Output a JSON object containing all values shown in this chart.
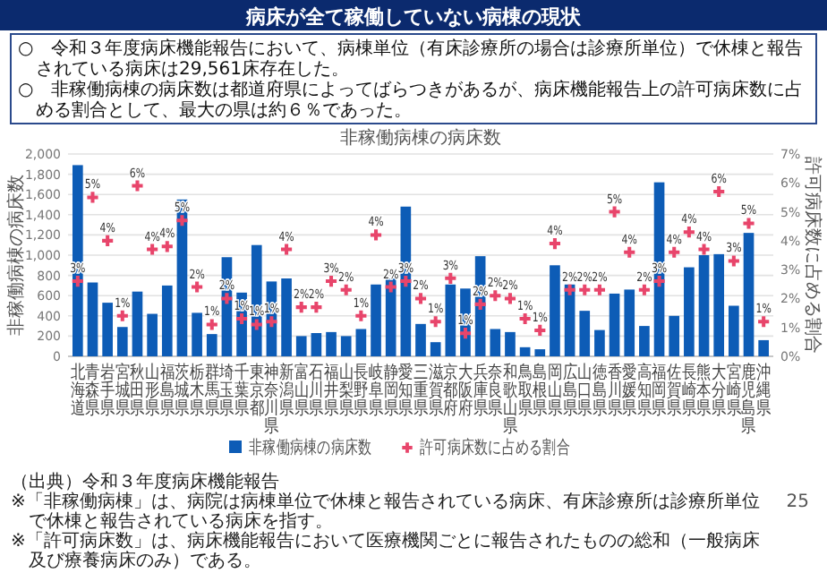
{
  "chart_data": {
    "type": "bar",
    "title": "病床が全て稼働していない病棟の現状",
    "subtitle": "非稼働病棟の病床数",
    "ylabel": "非稼働病棟の病床数",
    "y2label": "許可病床数に占める割合",
    "categories": [
      "北海道",
      "青森県",
      "岩手県",
      "宮城県",
      "秋田県",
      "山形県",
      "福島県",
      "茨城県",
      "栃木県",
      "群馬県",
      "埼玉県",
      "千葉県",
      "東京都",
      "神奈川県",
      "新潟県",
      "富山県",
      "石川県",
      "福井県",
      "山梨県",
      "長野県",
      "岐阜県",
      "静岡県",
      "愛知県",
      "三重県",
      "滋賀県",
      "京都府",
      "大阪府",
      "兵庫県",
      "奈良県",
      "和歌山県",
      "鳥取県",
      "島根県",
      "岡山県",
      "広島県",
      "山口県",
      "徳島県",
      "香川県",
      "愛媛県",
      "高知県",
      "福岡県",
      "佐賀県",
      "長崎県",
      "熊本県",
      "大分県",
      "宮崎県",
      "鹿児島県",
      "沖縄県"
    ],
    "series": [
      {
        "name": "非稼働病棟の病床数",
        "color": "#0d5cb6",
        "values": [
          1890,
          730,
          530,
          290,
          640,
          420,
          700,
          1550,
          430,
          220,
          980,
          630,
          1100,
          740,
          770,
          200,
          230,
          240,
          200,
          270,
          710,
          770,
          1480,
          320,
          140,
          710,
          670,
          990,
          270,
          240,
          90,
          70,
          900,
          710,
          450,
          260,
          620,
          660,
          300,
          1720,
          400,
          880,
          1000,
          1010,
          500,
          1220,
          160
        ]
      },
      {
        "name": "許可病床数に占める割合",
        "type": "scatter",
        "axis": "y2",
        "marker": "cross",
        "color": "#e8456b",
        "values": [
          2.6,
          5.5,
          4.0,
          1.4,
          5.9,
          3.7,
          3.8,
          4.7,
          2.4,
          1.1,
          2.0,
          1.3,
          1.1,
          1.2,
          3.7,
          1.7,
          1.7,
          2.6,
          2.3,
          1.4,
          4.2,
          2.4,
          2.6,
          2.0,
          1.2,
          2.7,
          0.8,
          1.8,
          2.1,
          2.0,
          1.3,
          0.9,
          3.9,
          2.3,
          2.3,
          2.3,
          5.0,
          3.6,
          2.3,
          2.6,
          3.6,
          4.3,
          3.7,
          5.7,
          3.3,
          4.6,
          1.2
        ],
        "value_labels": [
          "3%",
          "5%",
          "4%",
          "1%",
          "6%",
          "4%",
          "4%",
          "5%",
          "2%",
          "1%",
          "2%",
          "1%",
          "1%",
          "1%",
          "4%",
          "2%",
          "2%",
          "3%",
          "2%",
          "1%",
          "4%",
          "2%",
          "3%",
          "2%",
          "1%",
          "3%",
          "1%",
          "2%",
          "2%",
          "2%",
          "1%",
          "1%",
          "4%",
          "2%",
          "2%",
          "2%",
          "5%",
          "4%",
          "2%",
          "3%",
          "4%",
          "4%",
          "4%",
          "6%",
          "3%",
          "5%",
          "1%"
        ]
      }
    ],
    "ylim": [
      0,
      2000
    ],
    "yticks": [
      0,
      200,
      400,
      600,
      800,
      {
        "value": 1000,
        "label": "1,000"
      },
      {
        "value": 1200,
        "label": "1,200"
      },
      {
        "value": 1400,
        "label": "1,400"
      },
      {
        "value": 1600,
        "label": "1,600"
      },
      {
        "value": 1800,
        "label": "1,800"
      },
      {
        "value": 2000,
        "label": "2,000"
      }
    ],
    "y2lim": [
      0,
      7
    ],
    "y2ticks": [
      {
        "value": 0,
        "label": "0%"
      },
      {
        "value": 1,
        "label": "1%"
      },
      {
        "value": 2,
        "label": "2%"
      },
      {
        "value": 3,
        "label": "3%"
      },
      {
        "value": 4,
        "label": "4%"
      },
      {
        "value": 5,
        "label": "5%"
      },
      {
        "value": 6,
        "label": "6%"
      },
      {
        "value": 7,
        "label": "7%"
      }
    ],
    "grid": "y",
    "legend": "bottom",
    "annotations": [
      "○　令和３年度病床機能報告において、病棟単位（有床診療所の場合は診療所単位）で休棟と報告されている病床は29,561床存在した。",
      "○　非稼働病棟の病床数は都道府県によってばらつきがあるが、病床機能報告上の許可病床数に占める割合として、最大の県は約６％であった。",
      "（出典）令和３年度病床機能報告",
      "※「非稼働病棟」は、病院は病棟単位で休棟と報告されている病床、有床診療所は診療所単位で休棟と報告されている病床を指す。",
      "※「許可病床数」は、病床機能報告において医療機関ごとに報告されたものの総和（一般病床及び療養病床のみ）である。",
      "25"
    ]
  }
}
